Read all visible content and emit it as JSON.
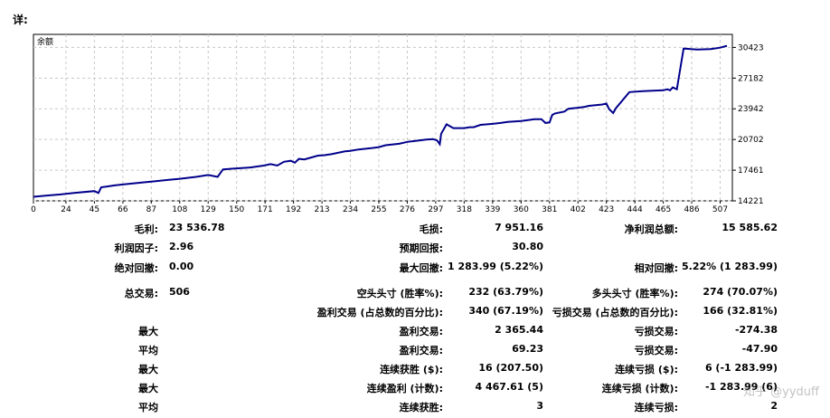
{
  "report": {
    "title": "详:"
  },
  "chart_data": {
    "type": "line",
    "title": "余额",
    "ylabel": "",
    "xlabel": "",
    "x_ticks": [
      0,
      24,
      45,
      66,
      87,
      108,
      129,
      150,
      171,
      192,
      213,
      234,
      255,
      276,
      297,
      318,
      339,
      360,
      381,
      402,
      423,
      444,
      465,
      486,
      507
    ],
    "y_ticks": [
      14221,
      17461,
      20702,
      23942,
      27182,
      30423
    ],
    "ylim": [
      14221,
      31800
    ],
    "xlim": [
      0,
      516
    ],
    "grid": true,
    "color": "#00008b",
    "series": [
      {
        "x": [
          0,
          10,
          20,
          30,
          45,
          48,
          50,
          55,
          60,
          66,
          80,
          87,
          100,
          108,
          120,
          129,
          136,
          138,
          140,
          150,
          160,
          170,
          175,
          180,
          185,
          190,
          193,
          196,
          200,
          205,
          210,
          215,
          220,
          230,
          234,
          240,
          250,
          255,
          260,
          270,
          276,
          282,
          290,
          295,
          298,
          300,
          301,
          305,
          310,
          318,
          322,
          325,
          330,
          339,
          345,
          350,
          360,
          365,
          370,
          375,
          378,
          381,
          383,
          385,
          392,
          395,
          402,
          407,
          410,
          420,
          423,
          425,
          428,
          430,
          440,
          450,
          465,
          468,
          470,
          472,
          475,
          480,
          490,
          500,
          507,
          512
        ],
        "y": [
          14650,
          14780,
          14900,
          15050,
          15250,
          15050,
          15650,
          15750,
          15850,
          15950,
          16150,
          16250,
          16450,
          16550,
          16750,
          16950,
          16750,
          17150,
          17550,
          17650,
          17750,
          17950,
          18100,
          17950,
          18350,
          18450,
          18250,
          18650,
          18600,
          18800,
          19000,
          19050,
          19150,
          19450,
          19500,
          19650,
          19800,
          19900,
          20100,
          20250,
          20450,
          20550,
          20700,
          20750,
          20600,
          20200,
          21300,
          22300,
          21900,
          21900,
          22000,
          22000,
          22250,
          22350,
          22450,
          22550,
          22650,
          22750,
          22850,
          22850,
          22450,
          22500,
          23300,
          23450,
          23650,
          23950,
          24050,
          24150,
          24250,
          24400,
          24500,
          23900,
          23500,
          24000,
          25700,
          25800,
          25900,
          26000,
          25900,
          26200,
          26000,
          30300,
          30200,
          30250,
          30400,
          30600
        ]
      }
    ]
  },
  "stats": [
    {
      "l1": "毛利:",
      "v1": "23 536.78",
      "l2": "毛损:",
      "v2": "7 951.16",
      "l3": "净利润总额:",
      "v3": "15 585.62"
    },
    {
      "l1": "利润因子:",
      "v1": "2.96",
      "l2": "预期回报:",
      "v2": "30.80",
      "l3": "",
      "v3": ""
    },
    {
      "l1": "绝对回撤:",
      "v1": "0.00",
      "l2": "最大回撤:",
      "v2": "1 283.99 (5.22%)",
      "l3": "相对回撤:",
      "v3": "5.22% (1 283.99)"
    },
    {
      "l1": "总交易:",
      "v1": "506",
      "l2": "空头头寸 (胜率%):",
      "v2": "232 (63.79%)",
      "l3": "多头头寸 (胜率%):",
      "v3": "274 (70.07%)"
    },
    {
      "l1": "",
      "v1": "",
      "l2": "盈利交易 (占总数的百分比):",
      "v2": "340 (67.19%)",
      "l3": "亏损交易 (占总数的百分比):",
      "v3": "166 (32.81%)"
    },
    {
      "l1": "最大",
      "v1": "",
      "l2": "盈利交易:",
      "v2": "2 365.44",
      "l3": "亏损交易:",
      "v3": "-274.38"
    },
    {
      "l1": "平均",
      "v1": "",
      "l2": "盈利交易:",
      "v2": "69.23",
      "l3": "亏损交易:",
      "v3": "-47.90"
    },
    {
      "l1": "最大",
      "v1": "",
      "l2": "连续获胜 ($):",
      "v2": "16 (207.50)",
      "l3": "连续亏损 ($):",
      "v3": "6 (-1 283.99)"
    },
    {
      "l1": "最大",
      "v1": "",
      "l2": "连续盈利 (计数):",
      "v2": "4 467.61 (5)",
      "l3": "连续亏损 (计数):",
      "v3": "-1 283.99 (6)"
    },
    {
      "l1": "平均",
      "v1": "",
      "l2": "连续获胜:",
      "v2": "3",
      "l3": "连续亏损:",
      "v3": "2"
    }
  ],
  "watermark": "知乎 @yyduff"
}
